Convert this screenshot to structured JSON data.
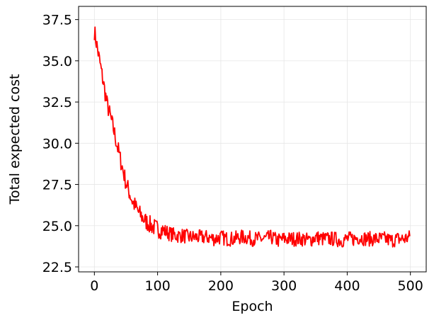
{
  "chart_data": {
    "type": "line",
    "title": "",
    "xlabel": "Epoch",
    "ylabel": "Total expected cost",
    "xlim": [
      -25,
      525
    ],
    "ylim": [
      22.2,
      38.3
    ],
    "xticks": [
      0,
      100,
      200,
      300,
      400,
      500
    ],
    "xtick_labels": [
      "0",
      "100",
      "200",
      "300",
      "400",
      "500"
    ],
    "yticks": [
      22.5,
      25.0,
      27.5,
      30.0,
      32.5,
      35.0,
      37.5
    ],
    "ytick_labels": [
      "22.5",
      "25.0",
      "27.5",
      "30.0",
      "32.5",
      "35.0",
      "37.5"
    ],
    "grid": true,
    "line_color": "#ff0000",
    "x": [
      0,
      10,
      20,
      30,
      40,
      50,
      60,
      70,
      80,
      90,
      100,
      110,
      120,
      130,
      140,
      150,
      160,
      170,
      180,
      190,
      200,
      210,
      220,
      230,
      240,
      250,
      260,
      270,
      280,
      290,
      300,
      310,
      320,
      330,
      340,
      350,
      360,
      370,
      380,
      390,
      400,
      410,
      420,
      430,
      440,
      450,
      460,
      470,
      480,
      490,
      499
    ],
    "values": [
      36.8,
      34.6,
      32.4,
      30.9,
      29.2,
      27.6,
      26.5,
      25.8,
      25.3,
      25.0,
      24.8,
      24.7,
      24.5,
      24.4,
      24.4,
      24.3,
      24.3,
      24.3,
      24.3,
      24.2,
      24.3,
      24.2,
      24.2,
      24.3,
      24.3,
      24.2,
      24.2,
      24.2,
      24.3,
      24.1,
      24.2,
      24.2,
      24.2,
      24.2,
      24.1,
      24.3,
      24.2,
      24.2,
      24.2,
      24.1,
      24.2,
      24.2,
      24.3,
      24.2,
      24.2,
      24.2,
      24.2,
      24.1,
      24.2,
      24.2,
      24.3
    ]
  }
}
